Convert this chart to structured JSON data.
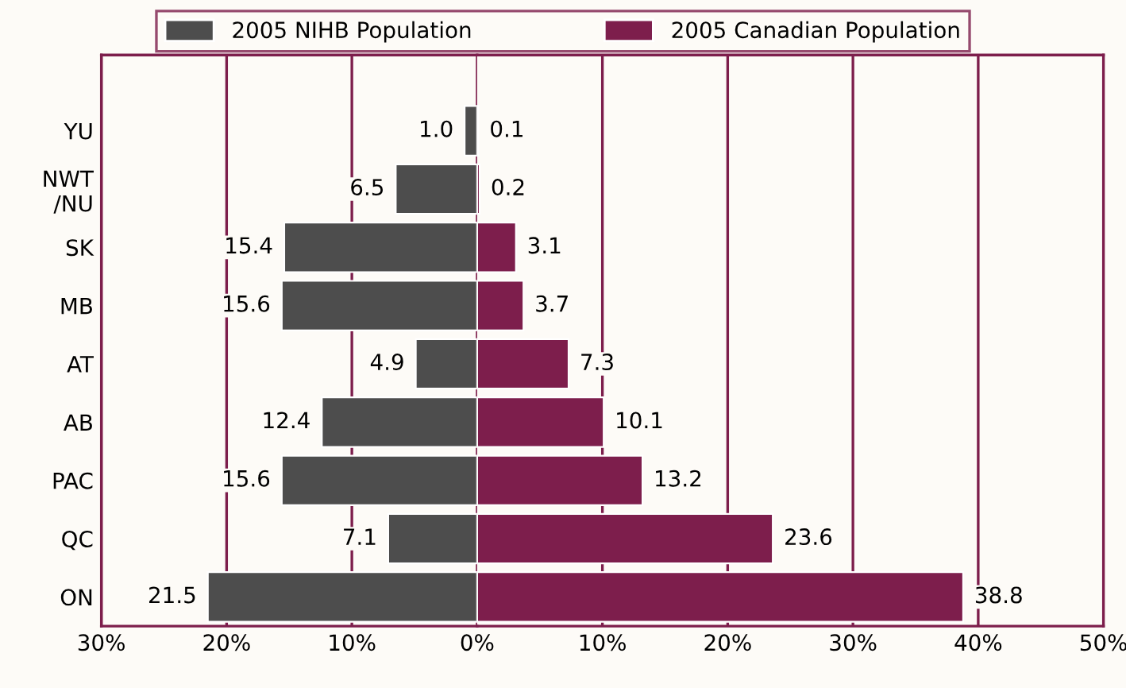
{
  "chart_data": [
    {
      "type": "bar",
      "orientation": "horizontal",
      "categories": [
        "YU",
        "NWT\n/NU",
        "SK",
        "MB",
        "AT",
        "AB",
        "PAC",
        "QC",
        "ON"
      ],
      "series": [
        {
          "name": "2005 NIHB Population",
          "color": "#4d4d4d",
          "values": [
            1.0,
            6.5,
            15.4,
            15.6,
            4.9,
            12.4,
            15.6,
            7.1,
            21.5
          ],
          "value_labels": [
            "1.0",
            "6.5",
            "15.4",
            "15.6",
            "4.9",
            "12.4",
            "15.6",
            "7.1",
            "21.5"
          ]
        }
      ],
      "xlim": [
        30,
        0
      ],
      "xticks": [
        {
          "value": 30,
          "label": "30%"
        },
        {
          "value": 20,
          "label": "20%"
        },
        {
          "value": 10,
          "label": "10%"
        },
        {
          "value": 0,
          "label": "0%"
        }
      ],
      "grid": "x",
      "legend": "top"
    },
    {
      "type": "bar",
      "orientation": "horizontal",
      "series": [
        {
          "name": "2005 Canadian Population",
          "color": "#7d1e4c",
          "values": [
            0.1,
            0.2,
            3.1,
            3.7,
            7.3,
            10.1,
            13.2,
            23.6,
            38.8
          ],
          "value_labels": [
            "0.1",
            "0.2",
            "3.1",
            "3.7",
            "7.3",
            "10.1",
            "13.2",
            "23.6",
            "38.8"
          ]
        }
      ],
      "xlim": [
        0,
        50
      ],
      "xticks": [
        {
          "value": 10,
          "label": "10%"
        },
        {
          "value": 20,
          "label": "20%"
        },
        {
          "value": 30,
          "label": "30%"
        },
        {
          "value": 40,
          "label": "40%"
        },
        {
          "value": 50,
          "label": "50%"
        }
      ],
      "tick_labels": "x",
      "grid": "x",
      "legend": "top"
    }
  ]
}
